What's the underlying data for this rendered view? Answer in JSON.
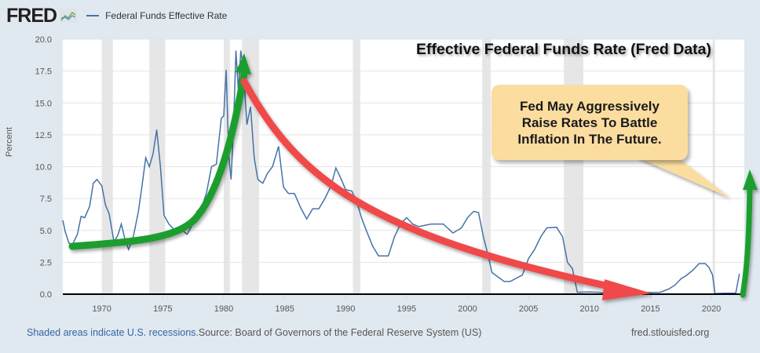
{
  "header": {
    "logo_text": "FRED",
    "logo_icon": "chart-line-icon",
    "legend_label": "Federal Funds Effective Rate",
    "series_color": "#4572a7"
  },
  "overlay": {
    "title": "Effective Federal Funds Rate (Fred Data)",
    "callout_lines": [
      "Fed May Aggressively",
      "Raise Rates To Battle",
      "Inflation In The Future."
    ],
    "arrow_colors": {
      "rise": "#1f9e2e",
      "fall": "#f04a4a"
    }
  },
  "footer": {
    "recession_note": "Shaded areas indicate U.S. recessions.",
    "source": "Source: Board of Governors of the Federal Reserve System (US)",
    "site": "fred.stlouisfed.org"
  },
  "chart_data": {
    "type": "line",
    "title": "Federal Funds Effective Rate",
    "xlabel": "",
    "ylabel": "Percent",
    "xlim": [
      1966.8,
      2022.7
    ],
    "ylim": [
      0,
      20
    ],
    "yticks": [
      "0.0",
      "2.5",
      "5.0",
      "7.5",
      "10.0",
      "12.5",
      "15.0",
      "17.5",
      "20.0"
    ],
    "xticks": [
      "1970",
      "1975",
      "1980",
      "1985",
      "1990",
      "1995",
      "2000",
      "2005",
      "2010",
      "2015",
      "2020"
    ],
    "grid": true,
    "legend": "top-left",
    "recessions": [
      [
        1970.0,
        1970.9
      ],
      [
        1973.9,
        1975.2
      ],
      [
        1980.0,
        1980.5
      ],
      [
        1981.5,
        1982.9
      ],
      [
        1990.6,
        1991.2
      ],
      [
        2001.2,
        2001.9
      ],
      [
        2007.9,
        2009.5
      ],
      [
        2020.1,
        2020.3
      ]
    ],
    "series": [
      {
        "name": "Federal Funds Effective Rate",
        "x": [
          1966.8,
          1967.0,
          1967.3,
          1967.6,
          1968.0,
          1968.3,
          1968.6,
          1969.0,
          1969.3,
          1969.6,
          1970.0,
          1970.3,
          1970.6,
          1971.0,
          1971.3,
          1971.6,
          1971.9,
          1972.2,
          1972.6,
          1973.0,
          1973.3,
          1973.6,
          1973.9,
          1974.2,
          1974.5,
          1974.8,
          1975.1,
          1975.5,
          1975.8,
          1976.2,
          1976.6,
          1977.0,
          1977.4,
          1977.8,
          1978.2,
          1978.6,
          1979.0,
          1979.4,
          1979.8,
          1980.0,
          1980.2,
          1980.4,
          1980.6,
          1980.8,
          1981.0,
          1981.2,
          1981.4,
          1981.6,
          1981.9,
          1982.2,
          1982.5,
          1982.8,
          1983.2,
          1983.6,
          1984.0,
          1984.5,
          1984.9,
          1985.3,
          1985.8,
          1986.3,
          1986.8,
          1987.3,
          1987.8,
          1988.3,
          1988.8,
          1989.2,
          1989.6,
          1990.0,
          1990.5,
          1990.9,
          1991.3,
          1991.7,
          1992.2,
          1992.7,
          1993.5,
          1994.0,
          1994.5,
          1995.0,
          1995.5,
          1996.0,
          1997.0,
          1998.0,
          1998.8,
          1999.5,
          2000.0,
          2000.5,
          2000.9,
          2001.3,
          2001.7,
          2002.0,
          2003.0,
          2003.5,
          2004.5,
          2005.0,
          2005.5,
          2006.0,
          2006.5,
          2007.3,
          2007.8,
          2008.2,
          2008.6,
          2009.0,
          2010.0,
          2012.0,
          2015.8,
          2016.5,
          2017.0,
          2017.5,
          2018.0,
          2018.5,
          2019.0,
          2019.5,
          2019.8,
          2020.1,
          2020.3,
          2021.0,
          2022.0,
          2022.3
        ],
        "values": [
          5.8,
          4.9,
          4.0,
          3.9,
          4.7,
          6.1,
          6.0,
          6.9,
          8.7,
          9.0,
          8.5,
          7.0,
          6.3,
          4.1,
          4.6,
          5.5,
          4.3,
          3.5,
          4.6,
          6.5,
          8.5,
          10.7,
          10.0,
          11.0,
          12.9,
          10.1,
          6.2,
          5.5,
          5.2,
          4.8,
          5.0,
          4.7,
          5.4,
          6.5,
          6.8,
          8.0,
          10.0,
          10.2,
          13.8,
          14.0,
          17.6,
          11.0,
          9.0,
          13.0,
          19.1,
          16.0,
          19.1,
          17.8,
          13.3,
          14.7,
          10.7,
          9.0,
          8.7,
          9.5,
          10.0,
          11.6,
          8.4,
          7.9,
          7.9,
          6.8,
          5.9,
          6.7,
          6.7,
          7.5,
          8.5,
          9.9,
          9.1,
          8.2,
          8.1,
          7.3,
          6.0,
          5.0,
          3.8,
          3.0,
          3.0,
          4.5,
          5.5,
          6.0,
          5.5,
          5.3,
          5.5,
          5.5,
          4.8,
          5.2,
          6.0,
          6.5,
          6.4,
          4.5,
          3.0,
          1.7,
          1.0,
          1.0,
          1.5,
          2.8,
          3.5,
          4.5,
          5.2,
          5.25,
          4.5,
          2.5,
          2.0,
          0.15,
          0.18,
          0.1,
          0.15,
          0.4,
          0.7,
          1.2,
          1.5,
          1.9,
          2.4,
          2.4,
          2.1,
          1.5,
          0.05,
          0.08,
          0.08,
          1.6
        ]
      }
    ]
  }
}
